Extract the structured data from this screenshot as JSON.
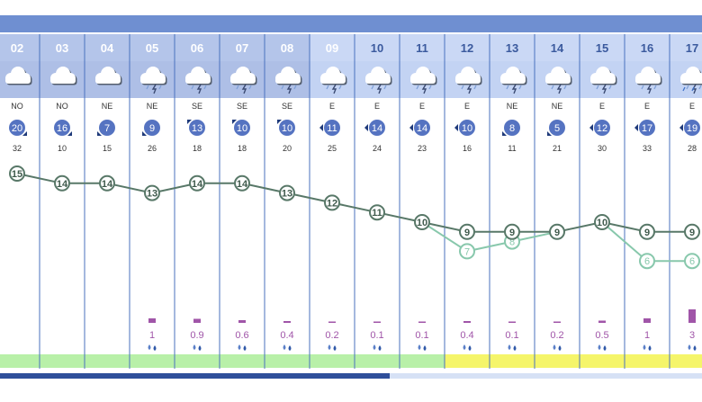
{
  "chart_data": {
    "type": "line",
    "x": [
      "02",
      "03",
      "04",
      "05",
      "06",
      "07",
      "08",
      "09",
      "10",
      "11",
      "12",
      "13",
      "14",
      "15",
      "16",
      "17"
    ],
    "sky": [
      "cloudy",
      "cloudy",
      "cloudy",
      "storm",
      "storm",
      "storm",
      "storm",
      "storm",
      "storm",
      "storm",
      "storm",
      "storm",
      "storm",
      "storm",
      "storm",
      "storm-rain"
    ],
    "wind_direction": [
      "NO",
      "NO",
      "NE",
      "NE",
      "SE",
      "SE",
      "SE",
      "E",
      "E",
      "E",
      "E",
      "NE",
      "NE",
      "E",
      "E",
      "E"
    ],
    "wind_speed": [
      20,
      16,
      7,
      9,
      13,
      10,
      10,
      11,
      14,
      14,
      10,
      8,
      5,
      12,
      17,
      19
    ],
    "wind_gust": [
      32,
      10,
      15,
      26,
      18,
      18,
      20,
      25,
      24,
      23,
      16,
      11,
      21,
      30,
      33,
      28
    ],
    "series": [
      {
        "values": [
          15,
          14,
          14,
          13,
          14,
          14,
          13,
          12,
          11,
          10,
          9,
          9,
          9,
          10,
          9,
          9
        ]
      },
      {
        "values": [
          null,
          null,
          null,
          null,
          null,
          null,
          null,
          null,
          null,
          null,
          7,
          8,
          null,
          null,
          6,
          6
        ]
      }
    ],
    "precipitation": [
      "",
      "",
      "",
      "1",
      "0.9",
      "0.6",
      "0.4",
      "0.2",
      "0.1",
      "0.1",
      "0.4",
      "0.1",
      "0.2",
      "0.5",
      "1",
      "3"
    ],
    "precip_values": [
      null,
      null,
      null,
      1,
      0.9,
      0.6,
      0.4,
      0.2,
      0.1,
      0.1,
      0.4,
      0.1,
      0.2,
      0.5,
      1,
      3
    ],
    "band_colors": [
      "#b8f0a8",
      "#b8f0a8",
      "#b8f0a8",
      "#b8f0a8",
      "#b8f0a8",
      "#b8f0a8",
      "#b8f0a8",
      "#b8f0a8",
      "#b8f0a8",
      "#b8f0a8",
      "#f5f56a",
      "#f5f56a",
      "#f5f56a",
      "#f5f56a",
      "#f5f56a",
      "#f5f56a"
    ],
    "colors": {
      "header_bg": "#c3d3f3",
      "accent": "#6f8fd1",
      "wind_circle": "#5573c1",
      "series_main": "#587868",
      "series_light": "#88c8ac",
      "precip": "#a055a8",
      "divider": "#4a72be"
    }
  }
}
